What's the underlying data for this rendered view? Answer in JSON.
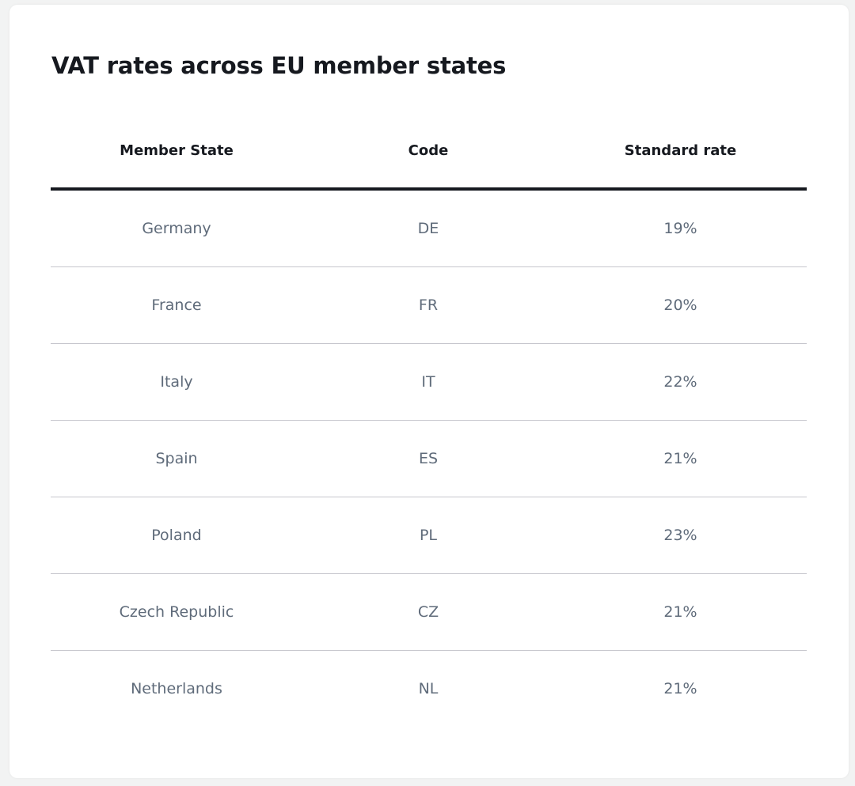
{
  "title": "VAT rates across EU member states",
  "table": {
    "headers": [
      "Member State",
      "Code",
      "Standard rate"
    ],
    "rows": [
      [
        "Germany",
        "DE",
        "19%"
      ],
      [
        "France",
        "FR",
        "20%"
      ],
      [
        "Italy",
        "IT",
        "22%"
      ],
      [
        "Spain",
        "ES",
        "21%"
      ],
      [
        "Poland",
        "PL",
        "23%"
      ],
      [
        "Czech Republic",
        "CZ",
        "21%"
      ],
      [
        "Netherlands",
        "NL",
        "21%"
      ]
    ]
  },
  "colors": {
    "background": "#f2f3f3",
    "card": "#ffffff",
    "heading_text": "#16191f",
    "cell_text": "#5f6b7a",
    "row_divider": "#c6c6cd"
  }
}
